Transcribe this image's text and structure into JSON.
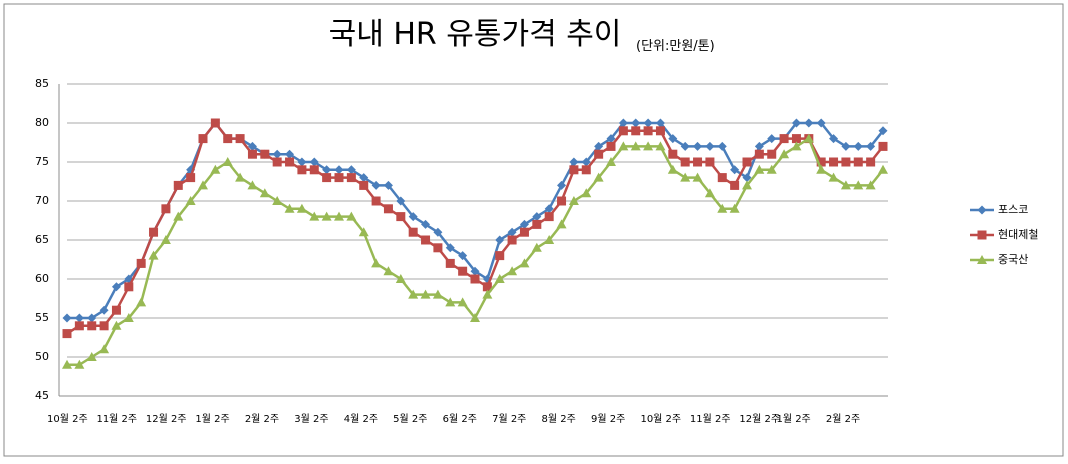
{
  "chart_data": {
    "type": "line",
    "title": "국내 HR 유통가격 추이",
    "subtitle": "(단위:만원/톤)",
    "categories": [
      "10월 2주",
      null,
      null,
      null,
      "11월 2주",
      null,
      null,
      null,
      "12월 2주",
      null,
      null,
      null,
      "1월 2주",
      null,
      null,
      null,
      "2월 2주",
      null,
      null,
      null,
      "3월 2주",
      null,
      null,
      null,
      "4월 2주",
      null,
      null,
      null,
      "5월 2주",
      null,
      null,
      null,
      "6월 2주",
      null,
      null,
      null,
      "7월 2주",
      null,
      null,
      null,
      "8월 2주",
      null,
      null,
      null,
      "9월 2주",
      null,
      null,
      null,
      "10월 2주",
      null,
      null,
      null,
      "11월 2주",
      null,
      null,
      null,
      "12월 2주",
      null,
      null,
      "1월 2주",
      null,
      null,
      null,
      "2월 2주",
      null,
      null,
      null
    ],
    "series": [
      {
        "name": "포스코",
        "color": "#4a7ebb",
        "marker": "diamond",
        "values": [
          55,
          55,
          55,
          56,
          59,
          60,
          62,
          66,
          69,
          72,
          74,
          78,
          80,
          78,
          78,
          77,
          76,
          76,
          76,
          75,
          75,
          74,
          74,
          74,
          73,
          72,
          72,
          70,
          68,
          67,
          66,
          64,
          63,
          61,
          60,
          65,
          66,
          67,
          68,
          69,
          72,
          75,
          75,
          77,
          78,
          80,
          80,
          80,
          80,
          78,
          77,
          77,
          77,
          77,
          74,
          73,
          77,
          78,
          78,
          80,
          80,
          80,
          78,
          77,
          77,
          77,
          79
        ]
      },
      {
        "name": "현대제철",
        "color": "#be4b48",
        "marker": "square",
        "values": [
          53,
          54,
          54,
          54,
          56,
          59,
          62,
          66,
          69,
          72,
          73,
          78,
          80,
          78,
          78,
          76,
          76,
          75,
          75,
          74,
          74,
          73,
          73,
          73,
          72,
          70,
          69,
          68,
          66,
          65,
          64,
          62,
          61,
          60,
          59,
          63,
          65,
          66,
          67,
          68,
          70,
          74,
          74,
          76,
          77,
          79,
          79,
          79,
          79,
          76,
          75,
          75,
          75,
          73,
          72,
          75,
          76,
          76,
          78,
          78,
          78,
          75,
          75,
          75,
          75,
          75,
          77
        ]
      },
      {
        "name": "중국산",
        "color": "#98b954",
        "marker": "triangle",
        "values": [
          49,
          49,
          50,
          51,
          54,
          55,
          57,
          63,
          65,
          68,
          70,
          72,
          74,
          75,
          73,
          72,
          71,
          70,
          69,
          69,
          68,
          68,
          68,
          68,
          66,
          62,
          61,
          60,
          58,
          58,
          58,
          57,
          57,
          55,
          58,
          60,
          61,
          62,
          64,
          65,
          67,
          70,
          71,
          73,
          75,
          77,
          77,
          77,
          77,
          74,
          73,
          73,
          71,
          69,
          69,
          72,
          74,
          74,
          76,
          77,
          78,
          74,
          73,
          72,
          72,
          72,
          74
        ]
      }
    ],
    "ylim": [
      45,
      85
    ],
    "yticks": [
      45,
      50,
      55,
      60,
      65,
      70,
      75,
      80,
      85
    ],
    "grid": true,
    "legend": "right"
  }
}
